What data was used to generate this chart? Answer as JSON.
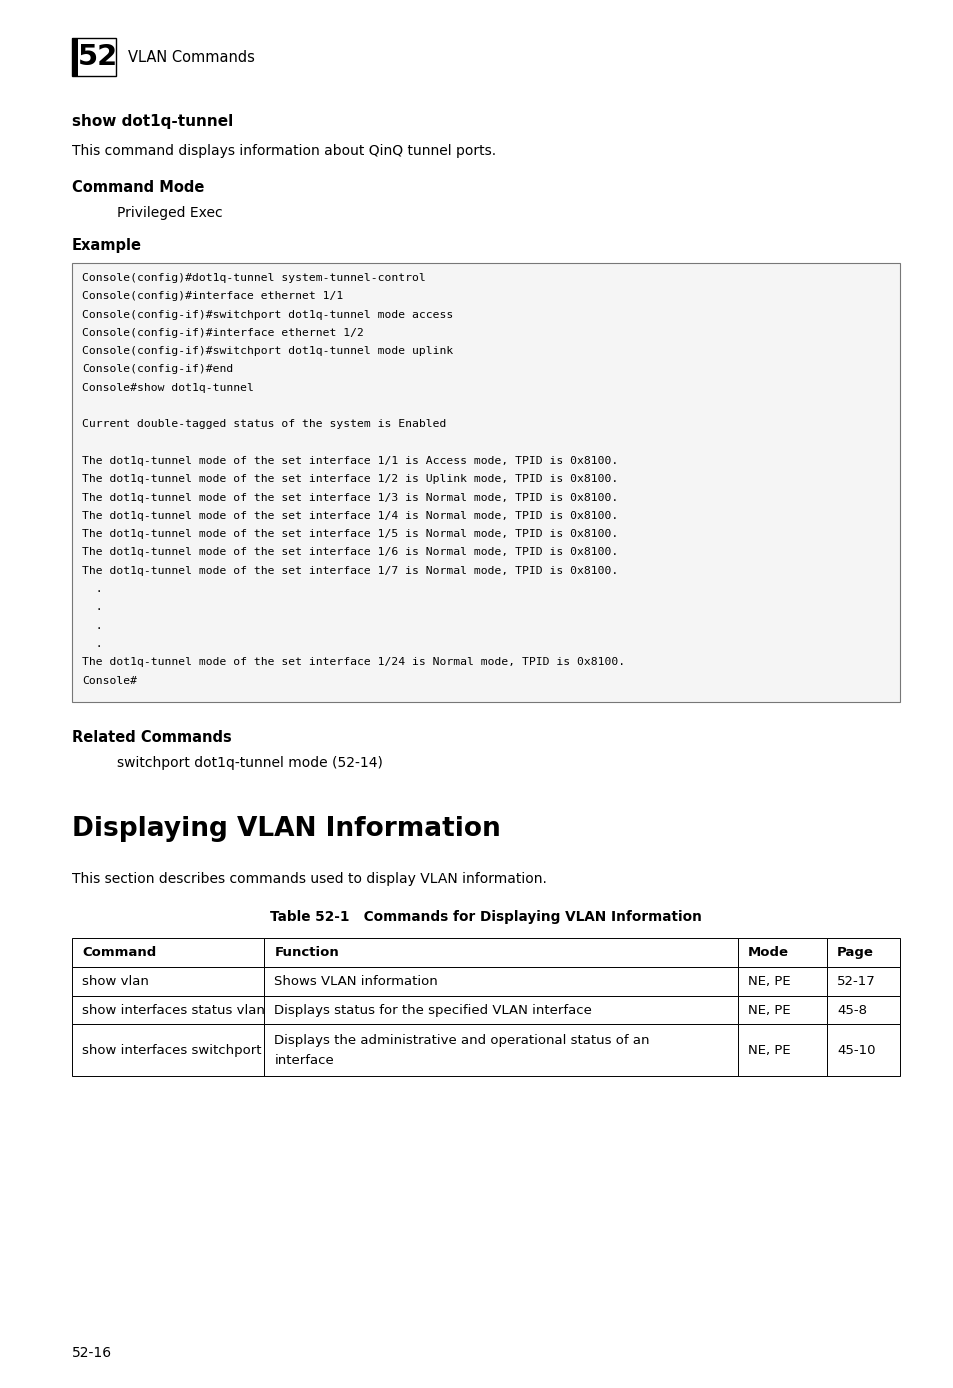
{
  "bg_color": "#ffffff",
  "page_width": 9.54,
  "page_height": 13.88,
  "chapter_number": "52",
  "chapter_title": "VLAN Commands",
  "section1_heading": "show dot1q-tunnel",
  "section1_desc": "This command displays information about QinQ tunnel ports.",
  "cmd_mode_label": "Command Mode",
  "cmd_mode_value": "Privileged Exec",
  "example_label": "Example",
  "code_lines": [
    "Console(config)#dot1q-tunnel system-tunnel-control",
    "Console(config)#interface ethernet 1/1",
    "Console(config-if)#switchport dot1q-tunnel mode access",
    "Console(config-if)#interface ethernet 1/2",
    "Console(config-if)#switchport dot1q-tunnel mode uplink",
    "Console(config-if)#end",
    "Console#show dot1q-tunnel",
    " ",
    "Current double-tagged status of the system is Enabled",
    " ",
    "The dot1q-tunnel mode of the set interface 1/1 is Access mode, TPID is 0x8100.",
    "The dot1q-tunnel mode of the set interface 1/2 is Uplink mode, TPID is 0x8100.",
    "The dot1q-tunnel mode of the set interface 1/3 is Normal mode, TPID is 0x8100.",
    "The dot1q-tunnel mode of the set interface 1/4 is Normal mode, TPID is 0x8100.",
    "The dot1q-tunnel mode of the set interface 1/5 is Normal mode, TPID is 0x8100.",
    "The dot1q-tunnel mode of the set interface 1/6 is Normal mode, TPID is 0x8100.",
    "The dot1q-tunnel mode of the set interface 1/7 is Normal mode, TPID is 0x8100.",
    "  .",
    "  .",
    "  .",
    "  .",
    "The dot1q-tunnel mode of the set interface 1/24 is Normal mode, TPID is 0x8100.",
    "Console#"
  ],
  "related_label": "Related Commands",
  "related_value": "switchport dot1q-tunnel mode (52-14)",
  "section2_heading": "Displaying VLAN Information",
  "section2_desc": "This section describes commands used to display VLAN information.",
  "table_title": "Table 52-1   Commands for Displaying VLAN Information",
  "table_headers": [
    "Command",
    "Function",
    "Mode",
    "Page"
  ],
  "table_rows": [
    [
      "show vlan",
      "Shows VLAN information",
      "NE, PE",
      "52-17"
    ],
    [
      "show interfaces status vlan",
      "Displays status for the specified VLAN interface",
      "NE, PE",
      "45-8"
    ],
    [
      "show interfaces switchport",
      "Displays the administrative and operational status of an\ninterface",
      "NE, PE",
      "45-10"
    ]
  ],
  "footer_text": "52-16"
}
